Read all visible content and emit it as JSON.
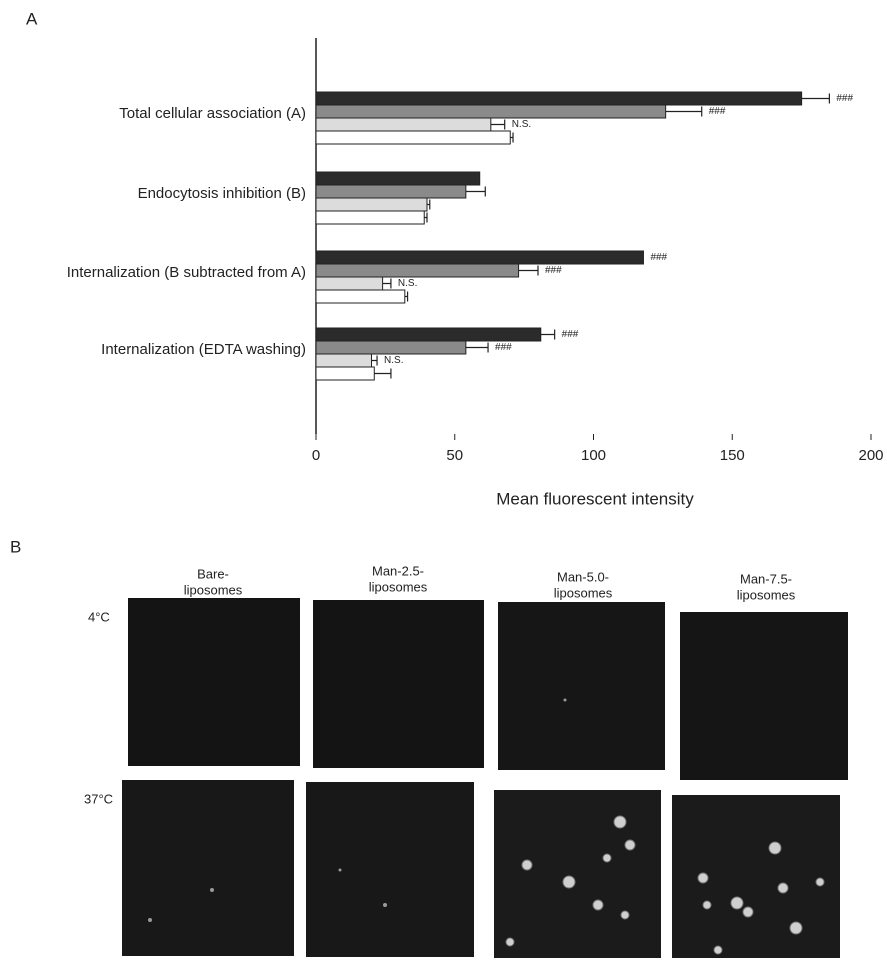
{
  "panel_labels": [
    "A",
    "B"
  ],
  "chart_data": {
    "type": "bar",
    "orientation": "horizontal",
    "xlabel": "Mean fluorescent intensity",
    "categories": [
      "Total cellular association (A)",
      "Endocytosis inhibition (B)",
      "Internalization (B subtracted from A)",
      "Internalization (EDTA washing)"
    ],
    "series": [
      {
        "color": "#2b2b2b",
        "values": [
          175,
          59,
          118,
          81
        ],
        "errors": [
          10,
          null,
          null,
          5
        ],
        "significance": [
          "###",
          null,
          "###",
          "###"
        ]
      },
      {
        "color": "#8a8a8a",
        "values": [
          126,
          54,
          73,
          54
        ],
        "errors": [
          13,
          7,
          7,
          8
        ],
        "significance": [
          "###",
          null,
          "###",
          "###"
        ]
      },
      {
        "color": "#dcdcdc",
        "values": [
          63,
          40,
          24,
          20
        ],
        "errors": [
          5,
          1,
          3,
          2
        ],
        "significance": [
          "N.S.",
          null,
          "N.S.",
          "N.S."
        ]
      },
      {
        "color": "#ffffff",
        "values": [
          70,
          39,
          32,
          21
        ],
        "errors": [
          1,
          1,
          1,
          6
        ]
      }
    ],
    "xlim": [
      0,
      200
    ],
    "xticks": [
      0,
      50,
      100,
      150,
      200
    ]
  },
  "panel_b": {
    "columns": [
      [
        "Bare-",
        "liposomes"
      ],
      [
        "Man-2.5-",
        "liposomes"
      ],
      [
        "Man-5.0-",
        "liposomes"
      ],
      [
        "Man-7.5-",
        "liposomes"
      ]
    ],
    "rows": [
      "4°C",
      "37°C"
    ]
  }
}
